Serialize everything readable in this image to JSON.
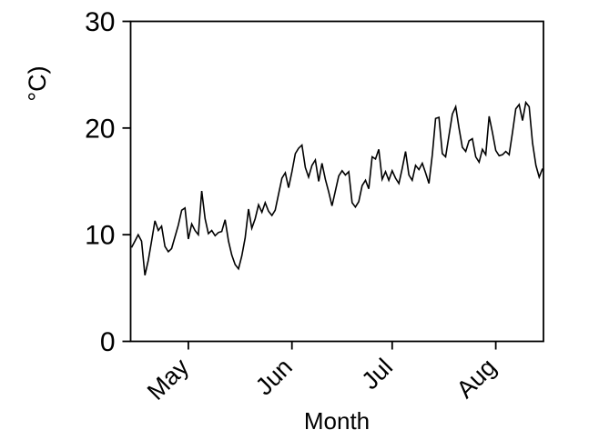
{
  "figure": {
    "background": "#ffffff",
    "foreground": "#000000"
  },
  "chart_data": {
    "type": "line",
    "title": "",
    "xlabel": "Month",
    "ylabel": "°C)",
    "grid": false,
    "legend": "none",
    "line_color": "#000000",
    "x_axis": {
      "tick_labels": [
        "May",
        "Jun",
        "Jul",
        "Aug"
      ],
      "tick_indices": [
        17,
        48,
        78,
        109
      ],
      "label_rotation_deg": 45
    },
    "y_axis": {
      "ticks": [
        0,
        10,
        20,
        30
      ],
      "range": [
        0,
        30
      ]
    },
    "n_points": 124,
    "values": [
      8.8,
      9.4,
      10.0,
      9.4,
      6.2,
      7.6,
      9.4,
      11.3,
      10.4,
      10.8,
      8.9,
      8.4,
      8.7,
      9.8,
      10.9,
      12.3,
      12.5,
      9.6,
      11.0,
      10.4,
      10.0,
      14.1,
      11.5,
      10.1,
      10.4,
      9.9,
      10.2,
      10.3,
      11.4,
      9.4,
      8.1,
      7.2,
      6.8,
      8.0,
      9.7,
      12.4,
      10.6,
      11.5,
      12.8,
      12.1,
      13.0,
      12.2,
      11.8,
      12.3,
      13.8,
      15.3,
      15.8,
      14.4,
      15.9,
      17.6,
      18.1,
      18.4,
      16.3,
      15.4,
      16.5,
      17.0,
      15.0,
      16.7,
      15.2,
      14.0,
      12.7,
      14.1,
      15.5,
      16.0,
      15.6,
      15.9,
      13.0,
      12.6,
      13.1,
      14.6,
      15.1,
      14.3,
      17.3,
      17.1,
      18.0,
      15.2,
      15.9,
      15.1,
      16.0,
      15.3,
      14.8,
      16.2,
      17.8,
      15.6,
      15.1,
      16.5,
      16.1,
      16.7,
      15.8,
      14.8,
      17.5,
      20.9,
      21.0,
      17.6,
      17.3,
      19.3,
      21.3,
      22.0,
      20.0,
      18.2,
      17.8,
      18.8,
      19.0,
      17.3,
      16.8,
      18.0,
      17.5,
      21.1,
      19.6,
      17.9,
      17.4,
      17.5,
      17.8,
      17.5,
      19.6,
      21.8,
      22.2,
      20.7,
      22.4,
      22.0,
      18.6,
      16.5,
      15.4,
      16.2
    ]
  }
}
